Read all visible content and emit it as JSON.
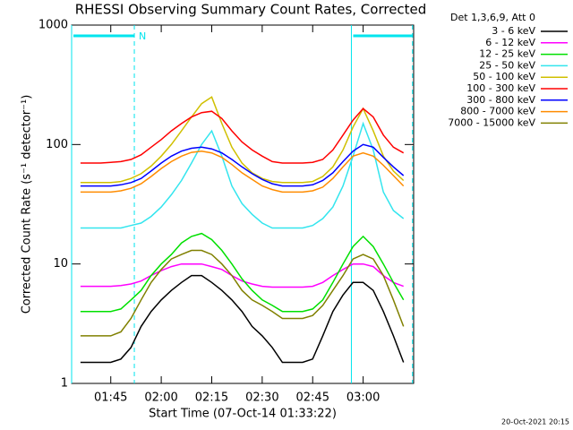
{
  "chart_data": {
    "type": "line",
    "title": "RHESSI Observing Summary Count Rates, Corrected",
    "xlabel": "Start Time (07-Oct-14 01:33:22)",
    "ylabel": "Corrected Count Rate (s⁻¹ detector⁻¹)",
    "legend_title": "Det 1,3,6,9, Att 0",
    "legend": "right",
    "timestamp": "20-Oct-2021 20:15",
    "log_y": true,
    "xlim": [
      "01:33:22",
      "03:15"
    ],
    "xticks": [
      "01:45",
      "02:00",
      "02:15",
      "02:30",
      "02:45",
      "03:00"
    ],
    "ylim": [
      1,
      1000
    ],
    "yticks": [
      1,
      10,
      100,
      1000
    ],
    "intervals": [
      {
        "start": "01:33:22",
        "end": "01:52",
        "label": "N",
        "color": "#00e5ee"
      },
      {
        "start": "02:56:30",
        "end": "03:14:40",
        "color": "#00e5ee"
      }
    ],
    "x": [
      "01:36",
      "01:39",
      "01:42",
      "01:45",
      "01:48",
      "01:51",
      "01:54",
      "01:57",
      "02:00",
      "02:03",
      "02:06",
      "02:09",
      "02:12",
      "02:15",
      "02:18",
      "02:21",
      "02:24",
      "02:27",
      "02:30",
      "02:33",
      "02:36",
      "02:39",
      "02:42",
      "02:45",
      "02:48",
      "02:51",
      "02:54",
      "02:57",
      "03:00",
      "03:03",
      "03:06",
      "03:09",
      "03:12"
    ],
    "series": [
      {
        "name": "3 - 6 keV",
        "color": "#000000",
        "values": [
          1.5,
          1.5,
          1.5,
          1.5,
          1.6,
          2,
          3,
          4,
          5,
          6,
          7,
          8,
          8,
          7,
          6,
          5,
          4,
          3,
          2.5,
          2,
          1.5,
          1.5,
          1.5,
          1.6,
          2.5,
          4,
          5.5,
          7,
          7,
          6,
          4,
          2.5,
          1.5
        ]
      },
      {
        "name": "6 - 12 keV",
        "color": "#ff00ff",
        "values": [
          6.5,
          6.5,
          6.5,
          6.5,
          6.6,
          6.8,
          7.2,
          8,
          8.8,
          9.5,
          10,
          10,
          10,
          9.5,
          9,
          8,
          7.2,
          6.8,
          6.5,
          6.4,
          6.4,
          6.4,
          6.4,
          6.5,
          7,
          8,
          9,
          10,
          10,
          9.5,
          8,
          7,
          6.5
        ]
      },
      {
        "name": "12 - 25 keV",
        "color": "#00e000",
        "values": [
          4,
          4,
          4,
          4,
          4.2,
          5,
          6,
          8,
          10,
          12,
          15,
          17,
          18,
          16,
          13,
          10,
          7.5,
          6,
          5,
          4.5,
          4,
          4,
          4,
          4.2,
          5,
          7,
          10,
          14,
          17,
          14,
          10,
          7,
          5
        ]
      },
      {
        "name": "25 - 50 keV",
        "color": "#33e5ee",
        "values": [
          20,
          20,
          20,
          20,
          20,
          21,
          22,
          25,
          30,
          38,
          50,
          70,
          100,
          130,
          80,
          45,
          32,
          26,
          22,
          20,
          20,
          20,
          20,
          21,
          24,
          30,
          45,
          80,
          150,
          90,
          40,
          28,
          24
        ]
      },
      {
        "name": "50 - 100 keV",
        "color": "#d0c000",
        "values": [
          48,
          48,
          48,
          48,
          49,
          52,
          57,
          66,
          80,
          100,
          130,
          170,
          220,
          250,
          150,
          95,
          70,
          58,
          52,
          49,
          48,
          48,
          48,
          49,
          54,
          65,
          90,
          140,
          200,
          130,
          80,
          60,
          50
        ]
      },
      {
        "name": "100 - 300 keV",
        "color": "#ff0000",
        "values": [
          70,
          70,
          70,
          71,
          72,
          75,
          82,
          95,
          110,
          130,
          150,
          170,
          185,
          190,
          165,
          130,
          105,
          90,
          80,
          72,
          70,
          70,
          70,
          71,
          75,
          90,
          120,
          160,
          200,
          170,
          120,
          95,
          85
        ]
      },
      {
        "name": "300 - 800 keV",
        "color": "#0000ff",
        "values": [
          45,
          45,
          45,
          45,
          46,
          48,
          52,
          60,
          70,
          80,
          88,
          93,
          95,
          92,
          85,
          75,
          65,
          57,
          51,
          47,
          45,
          45,
          45,
          46,
          50,
          58,
          72,
          88,
          100,
          95,
          78,
          65,
          55
        ]
      },
      {
        "name": "800 - 7000 keV",
        "color": "#ff8c00",
        "values": [
          40,
          40,
          40,
          40,
          41,
          43,
          47,
          54,
          63,
          72,
          80,
          86,
          88,
          85,
          78,
          68,
          58,
          51,
          45,
          42,
          40,
          40,
          40,
          41,
          44,
          52,
          65,
          80,
          85,
          80,
          67,
          55,
          45
        ]
      },
      {
        "name": "7000 - 15000 keV",
        "color": "#808000",
        "values": [
          2.5,
          2.5,
          2.5,
          2.5,
          2.7,
          3.5,
          5,
          7,
          9,
          11,
          12,
          13,
          13,
          12,
          10,
          8,
          6,
          5,
          4.5,
          4,
          3.5,
          3.5,
          3.5,
          3.7,
          4.5,
          6,
          8,
          11,
          12,
          11,
          8,
          5,
          3
        ]
      }
    ]
  }
}
